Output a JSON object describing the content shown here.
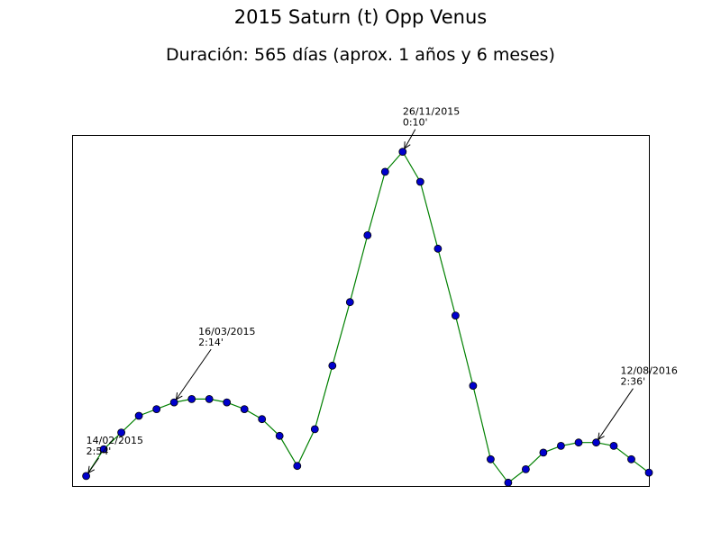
{
  "chart_data": {
    "type": "line",
    "title": "2015 Saturn (t) Opp Venus",
    "subtitle": "Duración: 565 días (aprox. 1 años y 6 meses)",
    "xlabel": "",
    "ylabel": "",
    "grid": false,
    "axes_ticks_shown": false,
    "line_color": "#008000",
    "marker_color": "#0000cc",
    "marker_edge_color": "#000000",
    "series": [
      {
        "points": [
          [
            0,
            0.0
          ],
          [
            1,
            0.08
          ],
          [
            2,
            0.13
          ],
          [
            3,
            0.18
          ],
          [
            4,
            0.2
          ],
          [
            5,
            0.22
          ],
          [
            6,
            0.23
          ],
          [
            7,
            0.23
          ],
          [
            8,
            0.22
          ],
          [
            9,
            0.2
          ],
          [
            10,
            0.17
          ],
          [
            11,
            0.12
          ],
          [
            12,
            0.03
          ],
          [
            13,
            0.14
          ],
          [
            14,
            0.33
          ],
          [
            15,
            0.52
          ],
          [
            16,
            0.72
          ],
          [
            17,
            0.91
          ],
          [
            18,
            0.97
          ],
          [
            19,
            0.88
          ],
          [
            20,
            0.68
          ],
          [
            21,
            0.48
          ],
          [
            22,
            0.27
          ],
          [
            23,
            0.05
          ],
          [
            24,
            -0.02
          ],
          [
            25,
            0.02
          ],
          [
            26,
            0.07
          ],
          [
            27,
            0.09
          ],
          [
            28,
            0.1
          ],
          [
            29,
            0.1
          ],
          [
            30,
            0.09
          ],
          [
            31,
            0.05
          ],
          [
            32,
            0.01
          ]
        ]
      }
    ],
    "xlim": [
      -0.8,
      32
    ],
    "ylim": [
      -0.03,
      1.02
    ],
    "annotations": [
      {
        "date": "14/02/2015",
        "time": "2:54'",
        "point_index": 0
      },
      {
        "date": "16/03/2015",
        "time": "2:14'",
        "point_index": 5
      },
      {
        "date": "26/11/2015",
        "time": "0:10'",
        "point_index": 18
      },
      {
        "date": "12/08/2016",
        "time": "2:36'",
        "point_index": 29
      }
    ]
  }
}
